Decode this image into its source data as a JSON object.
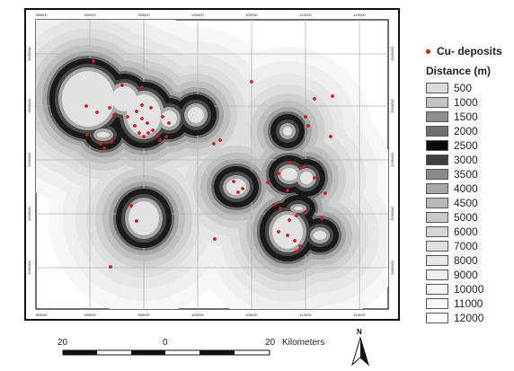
{
  "map": {
    "top_ticks": [
      "385000",
      "390000",
      "395000",
      "400000",
      "405000",
      "410000",
      "415000"
    ],
    "bottom_ticks": [
      "385000",
      "390000",
      "395000",
      "400000",
      "405000",
      "410000",
      "415000"
    ],
    "left_ticks": [
      "3305000",
      "3300000",
      "3295000",
      "3290000",
      "3285000"
    ],
    "right_ticks": [
      "3305000",
      "3300000",
      "3295000",
      "3290000",
      "3285000"
    ],
    "colors": {
      "deposit": "#d21d1d",
      "frame": "#111111",
      "grid": "#b5b5b5"
    }
  },
  "legend": {
    "deposit_label": "Cu- deposits",
    "title": "Distance (m)",
    "classes": [
      {
        "label": "500",
        "color": "#dcdcdc"
      },
      {
        "label": "1000",
        "color": "#c4c4c4"
      },
      {
        "label": "1500",
        "color": "#8e8e8e"
      },
      {
        "label": "2000",
        "color": "#6e6e6e"
      },
      {
        "label": "2500",
        "color": "#0a0a0a"
      },
      {
        "label": "3000",
        "color": "#404040"
      },
      {
        "label": "3500",
        "color": "#8a8a8a"
      },
      {
        "label": "4000",
        "color": "#a8a8a8"
      },
      {
        "label": "4500",
        "color": "#b8b8b8"
      },
      {
        "label": "5000",
        "color": "#c9c9c9"
      },
      {
        "label": "6000",
        "color": "#d6d6d6"
      },
      {
        "label": "7000",
        "color": "#dfdfdf"
      },
      {
        "label": "8000",
        "color": "#e7e7e7"
      },
      {
        "label": "9000",
        "color": "#eeeeee"
      },
      {
        "label": "10000",
        "color": "#f3f3f3"
      },
      {
        "label": "11000",
        "color": "#f8f8f8"
      },
      {
        "label": "12000",
        "color": "#ffffff"
      }
    ]
  },
  "scale_bar": {
    "left": "20",
    "middle": "0",
    "right": "20",
    "unit": "Kilometers"
  },
  "north_arrow": {
    "label": "N",
    "icon": "north-arrow-icon"
  }
}
